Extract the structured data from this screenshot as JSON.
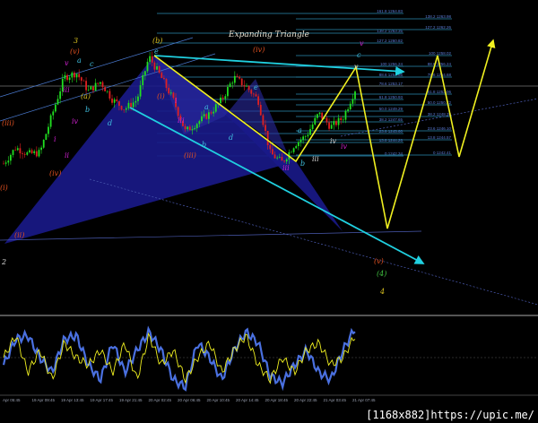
{
  "chart_data": {
    "type": "candlestick",
    "title": "Expanding Triangle",
    "x_tick_labels": [
      "Apr 05:45",
      "19 Apr 09:45",
      "19 Apr 13:45",
      "19 Apr 17:45",
      "19 Apr 21:45",
      "20 Apr 02:45",
      "20 Apr 06:45",
      "20 Apr 10:45",
      "20 Apr 14:45",
      "20 Apr 18:45",
      "20 Apr 22:45",
      "21 Apr 03:45",
      "21 Apr 07:45"
    ],
    "price_path": [
      1241.0,
      1243.5,
      1242.5,
      1242.7,
      1248.6,
      1254.4,
      1255.1,
      1252.3,
      1253.7,
      1250.9,
      1249.5,
      1250.9,
      1257.6,
      1254.4,
      1250.9,
      1246.0,
      1247.4,
      1248.8,
      1250.9,
      1254.4,
      1253.0,
      1250.9,
      1242.6,
      1241.2,
      1244.0,
      1245.4,
      1248.8,
      1246.7,
      1248.1,
      1252.5
    ],
    "fib_levels_left": [
      "161.8 1264.83",
      "138.2 1263.35",
      "127.2 1260.82",
      "100 1256.24",
      "88.6 1254.66",
      "78.6 1253.17",
      "61.8 1250.93",
      "50.0 1249.29",
      "38.2 1247.65",
      "23.6 1245.60",
      "13.8 1244.26",
      "0 1242.34"
    ],
    "fib_levels_right": [
      "138.2 1263.98",
      "127.2 1262.26",
      "100 1258.02",
      "88.6 1256.24",
      "78.6 1254.68",
      "61.8 1252.06",
      "50.0 1250.22",
      "38.2 1248.38",
      "23.6 1246.10",
      "13.8 1244.57",
      "0 1242.41"
    ],
    "wave_labels": [
      {
        "t": "3",
        "c": "#d8c020"
      },
      {
        "t": "(v)",
        "c": "#e05020"
      },
      {
        "t": "v",
        "c": "#d020d0"
      },
      {
        "t": "a",
        "c": "#40c0e0"
      },
      {
        "t": "c",
        "c": "#40c0e0"
      },
      {
        "t": "iii",
        "c": "#d020d0"
      },
      {
        "t": "(a)",
        "c": "#d8c020"
      },
      {
        "t": "b",
        "c": "#40c0e0"
      },
      {
        "t": "iv",
        "c": "#d020d0"
      },
      {
        "t": "(iii)",
        "c": "#e05020"
      },
      {
        "t": "i",
        "c": "#d020d0"
      },
      {
        "t": "ii",
        "c": "#d020d0"
      },
      {
        "t": "(iv)",
        "c": "#e05020"
      },
      {
        "t": "(i)",
        "c": "#e05020"
      },
      {
        "t": "(ii)",
        "c": "#e05020"
      },
      {
        "t": "2",
        "c": "#d8d8d8"
      },
      {
        "t": "d",
        "c": "#40c0e0"
      },
      {
        "t": "(b)",
        "c": "#d8c020"
      },
      {
        "t": "e",
        "c": "#40c0e0"
      },
      {
        "t": "(iv)",
        "c": "#e05020"
      },
      {
        "t": "(i)",
        "c": "#e05020"
      },
      {
        "t": "i",
        "c": "#d020d0"
      },
      {
        "t": "iii",
        "c": "#d020d0"
      },
      {
        "t": "a",
        "c": "#40c0e0"
      },
      {
        "t": "d",
        "c": "#40c0e0"
      },
      {
        "t": "b",
        "c": "#40c0e0"
      },
      {
        "t": "(iii)",
        "c": "#e05020"
      },
      {
        "t": "e",
        "c": "#40c0e0"
      },
      {
        "t": "iii",
        "c": "#d020d0"
      },
      {
        "t": "b",
        "c": "#40c0e0"
      },
      {
        "t": "a",
        "c": "#40c0e0"
      },
      {
        "t": "iii",
        "c": "#d8d8d8"
      },
      {
        "t": "iv",
        "c": "#d8d8d8"
      },
      {
        "t": "iv",
        "c": "#d020d0"
      },
      {
        "t": "c",
        "c": "#40c0e0"
      },
      {
        "t": "v",
        "c": "#d8d8d8"
      },
      {
        "t": "v",
        "c": "#d020d0"
      },
      {
        "t": "(v)",
        "c": "#e05020"
      },
      {
        "t": "(4)",
        "c": "#40c040"
      },
      {
        "t": "4",
        "c": "#d8c020"
      }
    ],
    "oscillator_blue": [
      40,
      75,
      80,
      50,
      30,
      75,
      80,
      40,
      20,
      70,
      30,
      60,
      85,
      60,
      20,
      10,
      70,
      50,
      20,
      60,
      85,
      70,
      25,
      15,
      40,
      60,
      30,
      20,
      60,
      90
    ],
    "oscillator_yellow": [
      50,
      80,
      30,
      60,
      20,
      70,
      50,
      40,
      60,
      30,
      70,
      20,
      80,
      40,
      60,
      20,
      50,
      70,
      30,
      60,
      80,
      40,
      20,
      50,
      30,
      60,
      70,
      40,
      50,
      80
    ],
    "colors": {
      "bull": "#20e020",
      "bear": "#e02020",
      "pattern": "#1a1a8a",
      "projection": "#f0f020",
      "trendline": "#20d0e0",
      "fib": "#2a8ab0"
    }
  },
  "watermark": "[1168x882]https://upic.me/"
}
